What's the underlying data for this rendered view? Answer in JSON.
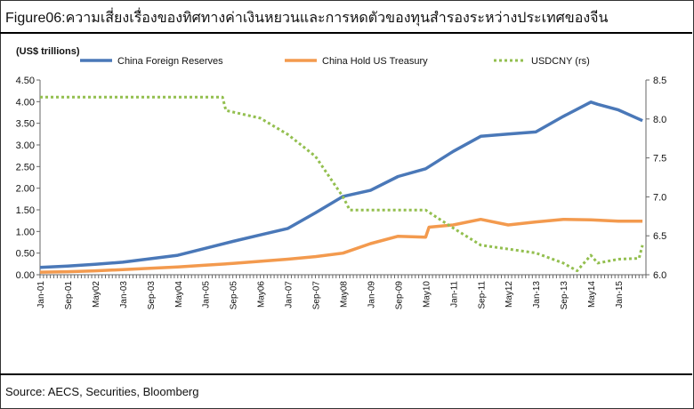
{
  "title": "Figure06:ความเสี่ยงเรื่องของทิศทางค่าเงินหยวนและการหดตัวของทุนสำรองระหว่างประเทศของจีน",
  "source": "Source: AECS, Securities, Bloomberg",
  "colors": {
    "reserves": "#4a78b8",
    "treasury": "#f39a4e",
    "usdcny": "#93bf4f",
    "axis": "#666666",
    "frame": "#333333"
  },
  "chart_data": {
    "type": "line",
    "ylabel_left": "(US$ trillions)",
    "ylim_left": [
      0,
      4.5
    ],
    "yticks_left": [
      "0.00",
      "0.50",
      "1.00",
      "1.50",
      "2.00",
      "2.50",
      "3.00",
      "3.50",
      "4.00",
      "4.50"
    ],
    "ylim_right": [
      6.0,
      8.5
    ],
    "yticks_right": [
      "6.0",
      "6.5",
      "7.0",
      "7.5",
      "8.0",
      "8.5"
    ],
    "xticks": [
      "Jan-01",
      "Sep-01",
      "May02",
      "Jan-03",
      "Sep-03",
      "May04",
      "Jan-05",
      "Sep-05",
      "May06",
      "Jan-07",
      "Sep-07",
      "May08",
      "Jan-09",
      "Sep-09",
      "May10",
      "Jan-11",
      "Sep-11",
      "May12",
      "Jan-13",
      "Sep-13",
      "May14",
      "Jan-15"
    ],
    "legend": [
      "China Foreign Reserves",
      "China Hold US Treasury",
      "USDCNY (rs)"
    ],
    "legend_position": "top",
    "grid": false,
    "series": [
      {
        "name": "China Foreign Reserves",
        "axis": "left",
        "style": "solid",
        "x": [
          "2001-01",
          "2001-09",
          "2002-05",
          "2003-01",
          "2003-09",
          "2004-05",
          "2005-01",
          "2005-09",
          "2006-05",
          "2007-01",
          "2007-09",
          "2008-05",
          "2009-01",
          "2009-09",
          "2010-05",
          "2011-01",
          "2011-09",
          "2012-05",
          "2013-01",
          "2013-09",
          "2014-05",
          "2014-07",
          "2015-01",
          "2015-08"
        ],
        "values": [
          0.17,
          0.2,
          0.24,
          0.29,
          0.37,
          0.45,
          0.61,
          0.77,
          0.92,
          1.07,
          1.43,
          1.81,
          1.95,
          2.27,
          2.45,
          2.85,
          3.2,
          3.25,
          3.3,
          3.66,
          3.99,
          3.94,
          3.81,
          3.56
        ]
      },
      {
        "name": "China Hold US Treasury",
        "axis": "left",
        "style": "solid",
        "x": [
          "2001-01",
          "2001-09",
          "2002-05",
          "2003-01",
          "2003-09",
          "2004-05",
          "2005-01",
          "2005-09",
          "2006-05",
          "2007-01",
          "2007-09",
          "2008-05",
          "2009-01",
          "2009-09",
          "2010-05",
          "2010-06",
          "2011-01",
          "2011-09",
          "2012-05",
          "2013-01",
          "2013-09",
          "2014-05",
          "2015-01",
          "2015-08"
        ],
        "values": [
          0.06,
          0.07,
          0.09,
          0.12,
          0.15,
          0.18,
          0.22,
          0.26,
          0.31,
          0.36,
          0.42,
          0.5,
          0.72,
          0.89,
          0.87,
          1.1,
          1.15,
          1.28,
          1.15,
          1.22,
          1.28,
          1.27,
          1.24,
          1.24
        ]
      },
      {
        "name": "USDCNY (rs)",
        "axis": "right",
        "style": "dotted",
        "x": [
          "2001-01",
          "2005-06",
          "2005-07",
          "2006-05",
          "2007-01",
          "2007-09",
          "2008-05",
          "2008-07",
          "2009-01",
          "2009-09",
          "2010-05",
          "2011-01",
          "2011-09",
          "2012-05",
          "2013-01",
          "2013-09",
          "2014-01",
          "2014-05",
          "2014-07",
          "2015-01",
          "2015-07",
          "2015-08"
        ],
        "values": [
          8.28,
          8.28,
          8.11,
          8.01,
          7.8,
          7.52,
          7.0,
          6.83,
          6.83,
          6.83,
          6.83,
          6.6,
          6.38,
          6.33,
          6.28,
          6.15,
          6.05,
          6.25,
          6.15,
          6.2,
          6.21,
          6.38
        ]
      }
    ]
  }
}
